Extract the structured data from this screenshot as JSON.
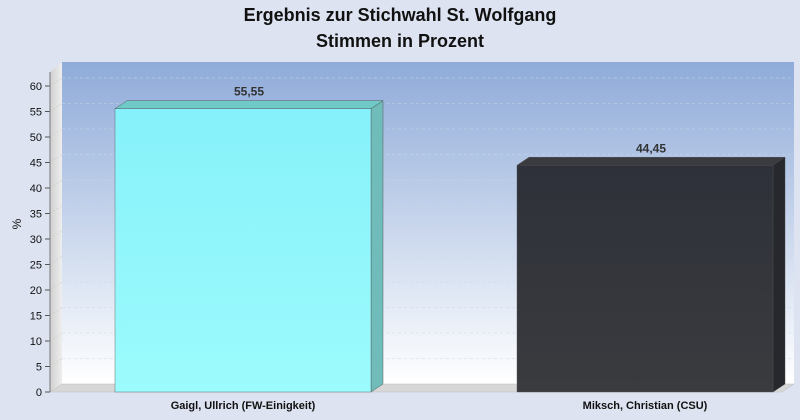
{
  "chart_data": {
    "type": "bar",
    "title": "Ergebnis zur Stichwahl St. Wolfgang",
    "subtitle": "Stimmen in Prozent",
    "ylabel": "%",
    "xlabel": "",
    "ylim": [
      0,
      65
    ],
    "yticks": [
      0,
      5,
      10,
      15,
      20,
      25,
      30,
      35,
      40,
      45,
      50,
      55,
      60
    ],
    "grid": true,
    "categories": [
      "Gaigl, Ullrich (FW-Einigkeit)",
      "Miksch, Christian (CSU)"
    ],
    "values": [
      55.55,
      44.45
    ],
    "value_labels": [
      "55,55",
      "44,45"
    ],
    "bar_colors": [
      "#8ff6fb",
      "#303239"
    ]
  }
}
